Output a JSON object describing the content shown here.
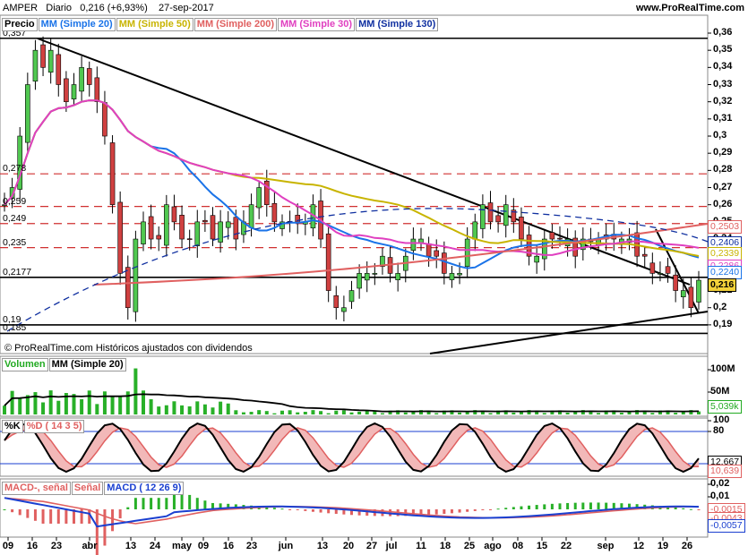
{
  "header": {
    "symbol": "AMPER",
    "period": "Diario",
    "quote": "0,216 (+6,93%)",
    "date": "27-sep-2017",
    "site": "www.ProRealTime.com"
  },
  "price_panel": {
    "legend": [
      {
        "text": "Precio",
        "color": "#000000"
      },
      {
        "text": "MM (Simple 20)",
        "color": "#1a73e8"
      },
      {
        "text": "MM (Simple 50)",
        "color": "#c8b400"
      },
      {
        "text": "MM (Simple 200)",
        "color": "#e06060"
      },
      {
        "text": "MM (Simple 30)",
        "color": "#e040c0"
      },
      {
        "text": "MM (Simple 130)",
        "color": "#1030a0"
      }
    ],
    "footer": "© ProRealTime.com  Históricos ajustados con dividendos",
    "left_labels": [
      "0,357",
      "0,278",
      "0,259",
      "0,249",
      "0,235",
      "0,2177",
      "0,19",
      "0,185"
    ],
    "y_ticks": [
      "0,36",
      "0,35",
      "0,34",
      "0,33",
      "0,32",
      "0,31",
      "0,3",
      "0,29",
      "0,28",
      "0,27",
      "0,26",
      "0,25",
      "0,24",
      "0,23",
      "0,22",
      "0,21",
      "0,2",
      "0,19"
    ],
    "badges": [
      {
        "text": "0,2503",
        "color": "#e06060"
      },
      {
        "text": "0,2406",
        "color": "#1030a0"
      },
      {
        "text": "0,2339",
        "color": "#c8b400"
      },
      {
        "text": "0,2286",
        "color": "#e040c0"
      },
      {
        "text": "0,2240",
        "color": "#1a73e8"
      },
      {
        "text": "0,216",
        "color": "#000000"
      }
    ]
  },
  "volume_panel": {
    "legend": [
      {
        "text": "Volumen",
        "color": "#22aa22"
      },
      {
        "text": "MM (Simple 20)",
        "color": "#000000"
      }
    ],
    "y_ticks": [
      "100M",
      "50M"
    ],
    "badge": "5,039k"
  },
  "stoch_panel": {
    "legend": [
      {
        "text": "%K",
        "color": "#000000"
      },
      {
        "text": "%D ( 14 3 5)",
        "color": "#e06060"
      }
    ],
    "y_ticks": [
      "100",
      "80",
      "20",
      "0"
    ],
    "badges": [
      {
        "text": "12,667",
        "color": "#000000"
      },
      {
        "text": "10,639",
        "color": "#e06060"
      }
    ]
  },
  "macd_panel": {
    "legend": [
      {
        "text": "MACD-, señal",
        "color": "#e06060"
      },
      {
        "text": "Señal",
        "color": "#e06060"
      },
      {
        "text": "MACD ( 12 26 9)",
        "color": "#1a3fd0"
      }
    ],
    "y_ticks": [
      "0,02",
      "0,01",
      "0",
      "-0,01"
    ],
    "badges": [
      {
        "text": "-0,0015",
        "color": "#e06060"
      },
      {
        "text": "-0,0043",
        "color": "#e06060"
      },
      {
        "text": "-0,0057",
        "color": "#1a3fd0"
      }
    ]
  },
  "x_axis": [
    "09",
    "16",
    "23",
    "abr",
    "13",
    "24",
    "may",
    "09",
    "16",
    "23",
    "jun",
    "13",
    "20",
    "27",
    "jul",
    "11",
    "18",
    "25",
    "ago",
    "08",
    "15",
    "22",
    "sep",
    "12",
    "19",
    "26"
  ],
  "chart_data": {
    "type": "candlestick",
    "title": "AMPER Diario",
    "x_range": [
      "2017-03-06",
      "2017-09-27"
    ],
    "ylim": [
      0.185,
      0.362
    ],
    "last": {
      "close": 0.216,
      "change_pct": 6.93,
      "date": "27-sep-2017"
    },
    "moving_averages": [
      {
        "name": "MM (Simple 20)",
        "value": 0.224
      },
      {
        "name": "MM (Simple 50)",
        "value": 0.2339
      },
      {
        "name": "MM (Simple 200)",
        "value": 0.2503
      },
      {
        "name": "MM (Simple 30)",
        "value": 0.2286
      },
      {
        "name": "MM (Simple 130)",
        "value": 0.2406
      }
    ],
    "horizontal_levels": [
      0.357,
      0.278,
      0.259,
      0.249,
      0.235,
      0.2177,
      0.19,
      0.185
    ],
    "close_series": [
      0.26,
      0.27,
      0.3,
      0.33,
      0.35,
      0.34,
      0.35,
      0.33,
      0.32,
      0.33,
      0.34,
      0.33,
      0.32,
      0.3,
      0.26,
      0.22,
      0.2,
      0.24,
      0.25,
      0.24,
      0.24,
      0.26,
      0.25,
      0.24,
      0.24,
      0.25,
      0.25,
      0.24,
      0.25,
      0.25,
      0.24,
      0.25,
      0.26,
      0.27,
      0.26,
      0.25,
      0.25,
      0.25,
      0.25,
      0.25,
      0.26,
      0.24,
      0.21,
      0.2,
      0.2,
      0.21,
      0.22,
      0.22,
      0.22,
      0.23,
      0.22,
      0.22,
      0.23,
      0.24,
      0.24,
      0.23,
      0.23,
      0.22,
      0.22,
      0.22,
      0.24,
      0.25,
      0.26,
      0.25,
      0.25,
      0.26,
      0.25,
      0.24,
      0.23,
      0.23,
      0.24,
      0.24,
      0.24,
      0.24,
      0.23,
      0.24,
      0.24,
      0.24,
      0.24,
      0.24,
      0.24,
      0.24,
      0.23,
      0.23,
      0.22,
      0.22,
      0.22,
      0.21,
      0.21,
      0.2,
      0.216
    ],
    "volume": {
      "ylim_M": [
        0,
        110
      ],
      "series_name": "Volumen",
      "last_k": 5.039
    },
    "stochastic": {
      "ylim": [
        0,
        100
      ],
      "levels": [
        80,
        20
      ],
      "k_last": 12.667,
      "d_last": 10.639
    },
    "macd": {
      "ylim": [
        -0.01,
        0.02
      ],
      "macd_last": -0.0057,
      "signal_last": -0.0043,
      "hist_last": -0.0015
    }
  }
}
